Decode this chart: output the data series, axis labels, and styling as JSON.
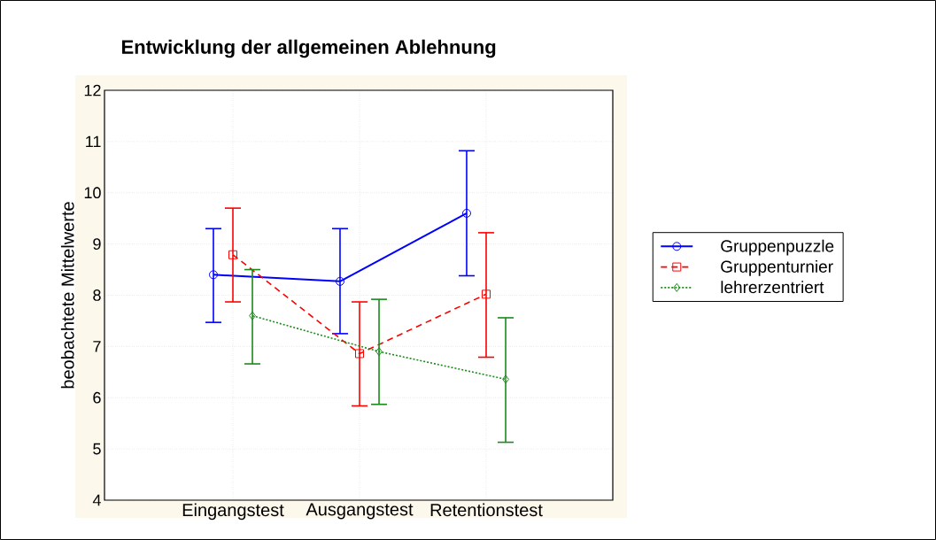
{
  "chart_data": {
    "type": "line",
    "title": "Entwicklung der allgemeinen Ablehnung",
    "ylabel": "beobachtete Mittelwerte",
    "categories": [
      "Eingangstest",
      "Ausgangstest",
      "Retentionstest"
    ],
    "ylim": [
      4,
      12
    ],
    "yticks": [
      4,
      5,
      6,
      7,
      8,
      9,
      10,
      11,
      12
    ],
    "grid": true,
    "legend": "right",
    "series": [
      {
        "name": "Gruppenpuzzle",
        "color": "#0000ff",
        "marker": "circle",
        "line_style": "solid",
        "values": [
          8.4,
          8.27,
          9.6
        ],
        "errors": [
          [
            7.47,
            9.3
          ],
          [
            7.25,
            9.3
          ],
          [
            8.38,
            10.82
          ]
        ]
      },
      {
        "name": "Gruppenturnier",
        "color": "#ff0000",
        "marker": "square",
        "line_style": "dashed",
        "values": [
          8.79,
          6.86,
          8.02
        ],
        "errors": [
          [
            7.87,
            9.7
          ],
          [
            5.84,
            7.87
          ],
          [
            6.79,
            9.22
          ]
        ]
      },
      {
        "name": "lehrerzentriert",
        "color": "#1a8a1a",
        "marker": "diamond",
        "line_style": "dotted",
        "values": [
          7.6,
          6.9,
          6.36
        ],
        "errors": [
          [
            6.66,
            8.5
          ],
          [
            5.87,
            7.92
          ],
          [
            5.13,
            7.56
          ]
        ]
      }
    ]
  }
}
